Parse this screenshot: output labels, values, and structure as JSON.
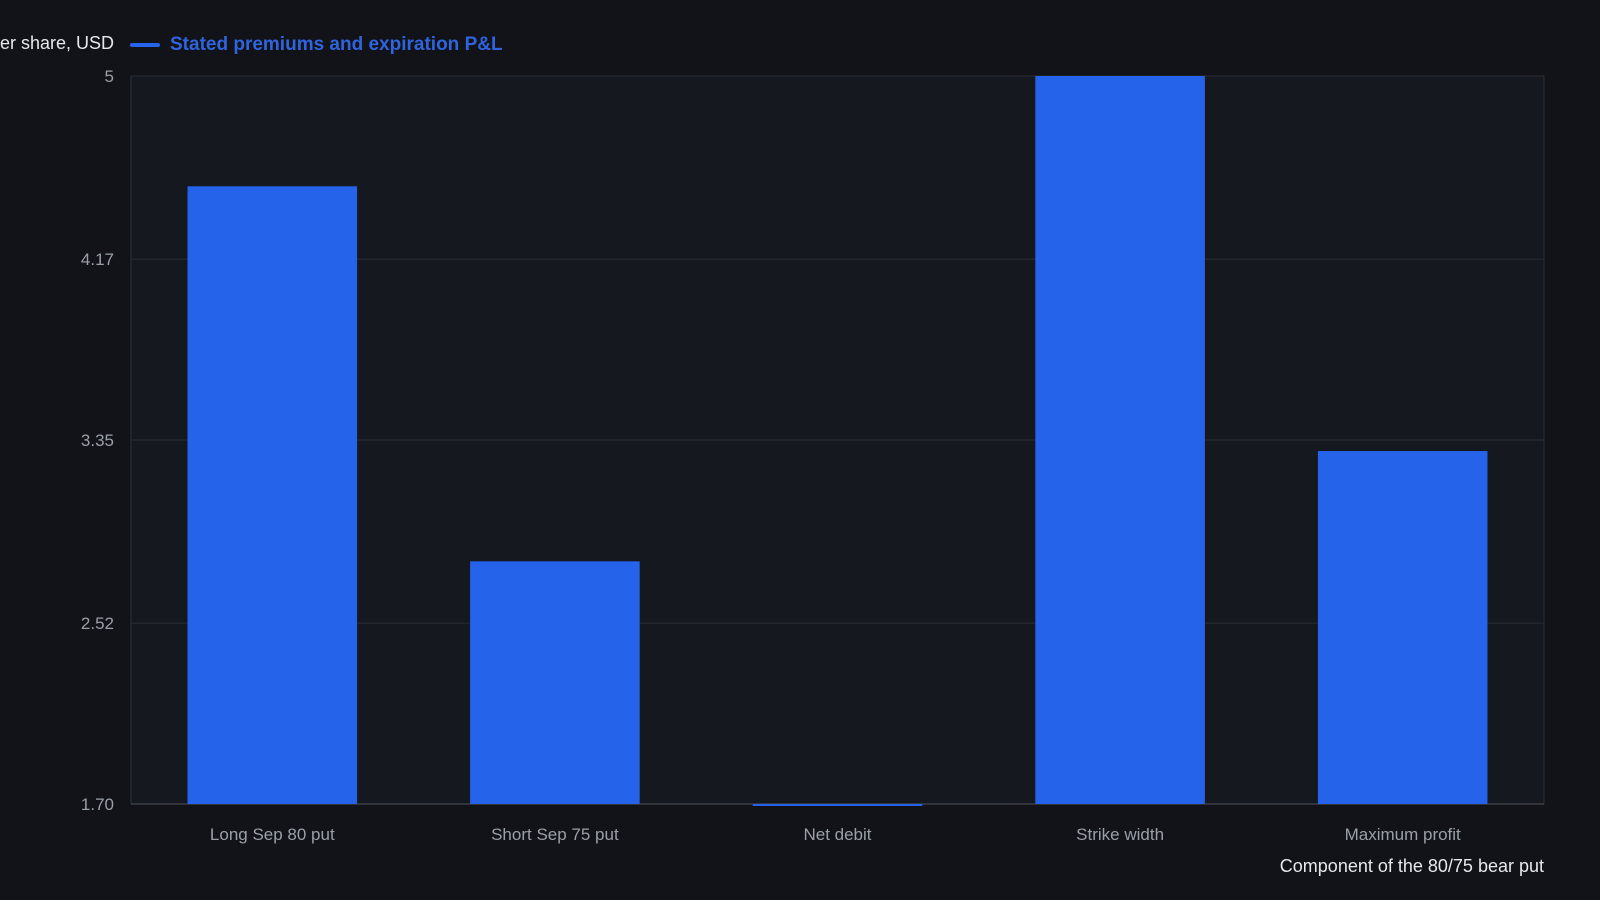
{
  "chart_data": {
    "type": "bar",
    "title": "",
    "ylabel": "Per share, USD",
    "xlabel": "Component of the 80/75 bear put",
    "categories": [
      "Long Sep 80 put",
      "Short Sep 75 put",
      "Net debit",
      "Strike width",
      "Maximum profit"
    ],
    "series": [
      {
        "name": "Stated premiums and expiration P&L",
        "values": [
          4.5,
          2.8,
          1.7,
          5.0,
          3.3
        ]
      }
    ],
    "ylim": [
      1.7,
      5
    ],
    "yticks": [
      "1.70",
      "2.52",
      "3.35",
      "4.17",
      "5"
    ],
    "grid": true,
    "legend": "top-left",
    "colors": {
      "bar": "#2563eb",
      "background": "#111318",
      "plot_background": "#15181e"
    }
  }
}
